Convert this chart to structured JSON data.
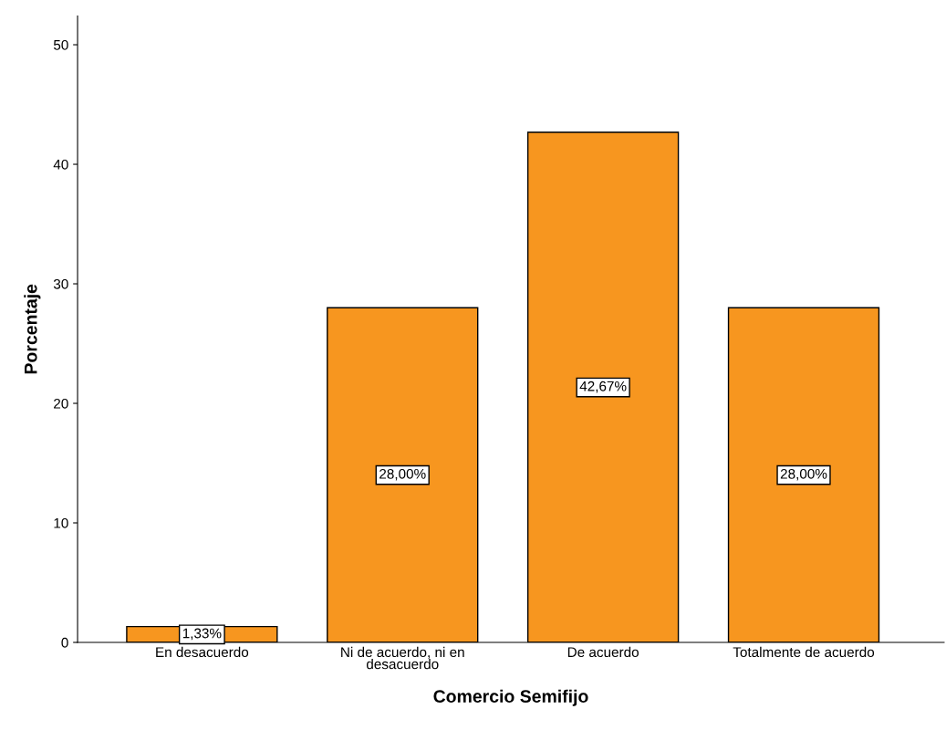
{
  "chart_data": {
    "type": "bar",
    "xlabel": "Comercio Semifijo",
    "ylabel": "Porcentaje",
    "categories": [
      "En desacuerdo",
      "Ni de acuerdo, ni en\ndesacuerdo",
      "De acuerdo",
      "Totalmente de acuerdo"
    ],
    "values": [
      1.33,
      28.0,
      42.67,
      28.0
    ],
    "value_labels": [
      "1,33%",
      "28,00%",
      "42,67%",
      "28,00%"
    ],
    "color": "#f7961f",
    "ylim": [
      0,
      52.4
    ],
    "yticks": [
      0,
      10,
      20,
      30,
      40,
      50
    ],
    "grid": false,
    "legend": false
  }
}
